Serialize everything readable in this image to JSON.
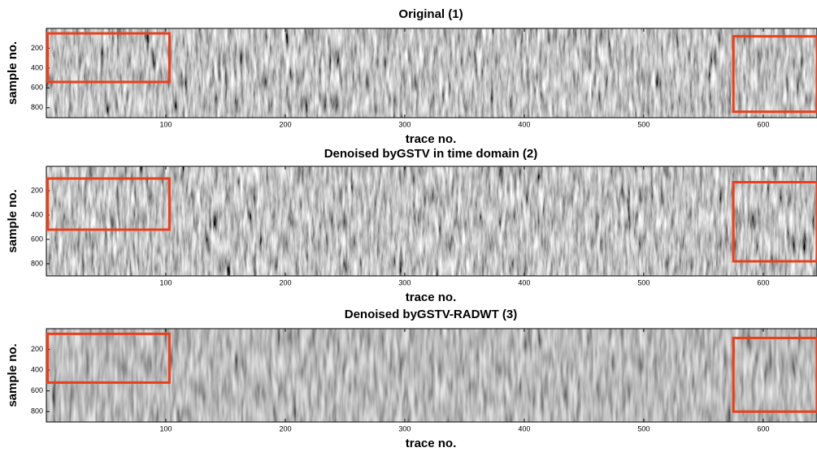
{
  "chart_data": [
    {
      "type": "image",
      "title": "Original (1)",
      "xlabel": "trace no.",
      "ylabel": "sample no.",
      "xlim": [
        0,
        645
      ],
      "ylim": [
        0,
        900
      ],
      "y_inverted": true,
      "xticks": [
        100,
        200,
        300,
        400,
        500,
        600
      ],
      "yticks": [
        200,
        400,
        600,
        800
      ],
      "boxes": [
        {
          "x": [
            1,
            103
          ],
          "y": [
            50,
            540
          ],
          "color": "#e8401c"
        },
        {
          "x": [
            575,
            645
          ],
          "y": [
            80,
            840
          ],
          "color": "#e8401c"
        }
      ]
    },
    {
      "type": "image",
      "title": "Denoised byGSTV in time domain (2)",
      "xlabel": "trace no.",
      "ylabel": "sample no.",
      "xlim": [
        0,
        645
      ],
      "ylim": [
        0,
        900
      ],
      "y_inverted": true,
      "xticks": [
        100,
        200,
        300,
        400,
        500,
        600
      ],
      "yticks": [
        200,
        400,
        600,
        800
      ],
      "boxes": [
        {
          "x": [
            1,
            103
          ],
          "y": [
            100,
            520
          ],
          "color": "#e8401c"
        },
        {
          "x": [
            575,
            645
          ],
          "y": [
            130,
            780
          ],
          "color": "#e8401c"
        }
      ]
    },
    {
      "type": "image",
      "title": "Denoised byGSTV-RADWT (3)",
      "xlabel": "trace no.",
      "ylabel": "sample no.",
      "xlim": [
        0,
        645
      ],
      "ylim": [
        0,
        900
      ],
      "y_inverted": true,
      "xticks": [
        100,
        200,
        300,
        400,
        500,
        600
      ],
      "yticks": [
        200,
        400,
        600,
        800
      ],
      "boxes": [
        {
          "x": [
            1,
            103
          ],
          "y": [
            50,
            520
          ],
          "color": "#e8401c"
        },
        {
          "x": [
            575,
            645
          ],
          "y": [
            90,
            800
          ],
          "color": "#e8401c"
        }
      ]
    }
  ]
}
